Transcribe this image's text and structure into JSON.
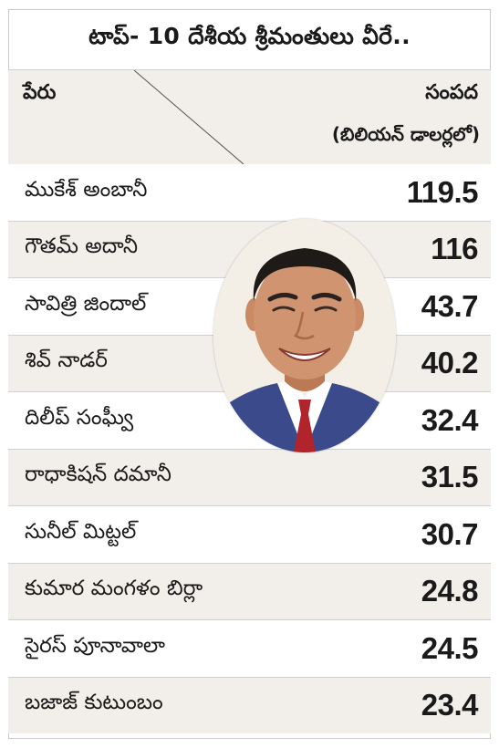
{
  "title": "టాప్- 10 దేశీయ శ్రీమంతులు వీరే..",
  "header": {
    "name_label": "పేరు",
    "value_label": "సంపద",
    "unit_label": "(బిలియన్ డాలర్లలో)"
  },
  "rows": [
    {
      "name": "ముకేశ్ అంబానీ",
      "value": "119.5"
    },
    {
      "name": "గౌతమ్ అదానీ",
      "value": "116"
    },
    {
      "name": "సావిత్రి జిందాల్",
      "value": "43.7"
    },
    {
      "name": "శివ్ నాడర్",
      "value": "40.2"
    },
    {
      "name": "దిలీప్ సంఘ్వీ",
      "value": "32.4"
    },
    {
      "name": "రాధాకిషన్ దమానీ",
      "value": "31.5"
    },
    {
      "name": "సునీల్ మిట్టల్",
      "value": "30.7"
    },
    {
      "name": "కుమార మంగళం బిర్లా",
      "value": "24.8"
    },
    {
      "name": "సైరస్ పూనావాలా",
      "value": "24.5"
    },
    {
      "name": "బజాజ్ కుటుంబం",
      "value": "23.4"
    }
  ],
  "colors": {
    "band": "#f2eee9",
    "text": "#1a1a1a",
    "border": "#d0d0d0"
  },
  "image": "portrait-photo"
}
